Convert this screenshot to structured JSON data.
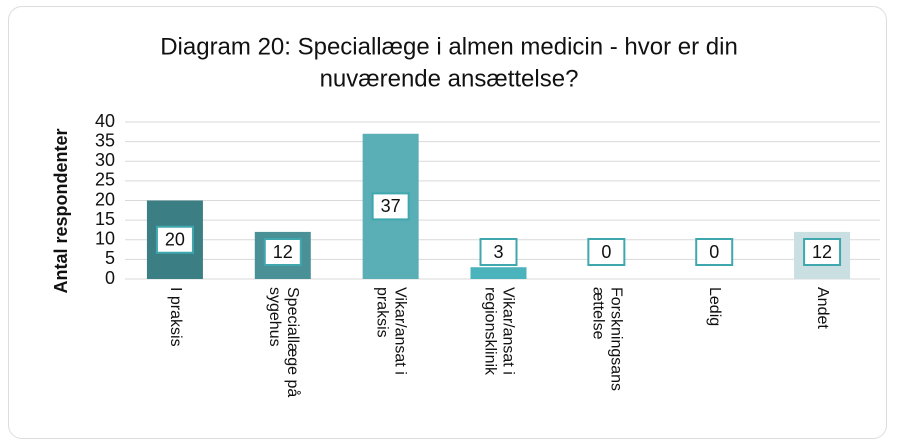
{
  "chart_data": {
    "type": "bar",
    "title_lines": [
      "Diagram 20: Speciallæge i almen medicin - hvor er din",
      "nuværende ansættelse?"
    ],
    "ylabel": "Antal respondenter",
    "categories": [
      "I praksis",
      "Speciallæge på sygehus",
      "Vikar/ansat i praksis",
      "Vikar/ansat i regionsklinik",
      "Forskningsansættelse",
      "Ledig",
      "Andet"
    ],
    "values": [
      20,
      12,
      37,
      3,
      0,
      0,
      12
    ],
    "colors": [
      "#3b7e83",
      "#4a9097",
      "#5aaeb5",
      "#4ab3bb",
      "#52b8c0",
      "#5cc0c8",
      "#c9dfe2"
    ],
    "label_border": "#3fa7ae",
    "ylim": [
      0,
      40
    ],
    "yticks": [
      0,
      5,
      10,
      15,
      20,
      25,
      30,
      35,
      40
    ],
    "grid": true
  }
}
